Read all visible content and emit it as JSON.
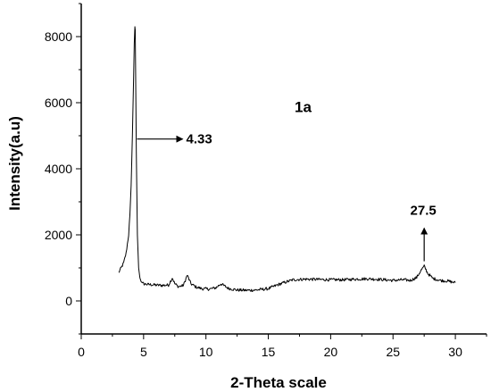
{
  "chart_data": {
    "type": "line",
    "xlabel": "2-Theta scale",
    "ylabel": "Intensity(a.u)",
    "xlim": [
      0,
      32.5
    ],
    "ylim": [
      -1000,
      9000
    ],
    "xticks": [
      0,
      5,
      10,
      15,
      20,
      25,
      30
    ],
    "yticks": [
      0,
      2000,
      4000,
      6000,
      8000
    ],
    "grid": false,
    "series": [
      {
        "color": "#000000",
        "x": [
          3.0,
          3.2,
          3.4,
          3.6,
          3.8,
          3.9,
          4.0,
          4.1,
          4.2,
          4.25,
          4.3,
          4.33,
          4.36,
          4.42,
          4.5,
          4.6,
          4.7,
          4.8,
          5.0,
          5.3,
          5.7,
          6.0,
          6.5,
          7.0,
          7.3,
          7.5,
          7.8,
          8.2,
          8.5,
          8.8,
          9.2,
          9.7,
          10.3,
          10.8,
          11.2,
          11.8,
          12.5,
          13.3,
          14.0,
          15.0,
          15.7,
          16.3,
          17.0,
          18.0,
          19.0,
          20.0,
          21.0,
          22.0,
          23.0,
          24.0,
          25.0,
          25.8,
          26.4,
          26.9,
          27.2,
          27.5,
          27.8,
          28.2,
          28.8,
          29.4,
          30.0
        ],
        "y": [
          850,
          1000,
          1150,
          1450,
          2000,
          2600,
          3500,
          5000,
          6800,
          7800,
          8300,
          8200,
          7000,
          4500,
          2000,
          1000,
          700,
          580,
          520,
          500,
          490,
          480,
          470,
          480,
          700,
          520,
          430,
          470,
          780,
          520,
          420,
          370,
          360,
          400,
          520,
          380,
          330,
          320,
          330,
          370,
          480,
          560,
          640,
          660,
          650,
          640,
          640,
          660,
          670,
          650,
          620,
          640,
          620,
          710,
          900,
          1050,
          830,
          680,
          620,
          600,
          550
        ]
      }
    ],
    "annotations": [
      {
        "text": "4.33",
        "x": 4.33,
        "y": 4900,
        "arrow": "right"
      },
      {
        "text": "27.5",
        "x": 27.5,
        "y": 1200,
        "arrow": "up"
      },
      {
        "text": "1a",
        "x": 17,
        "y": 5880
      }
    ]
  }
}
